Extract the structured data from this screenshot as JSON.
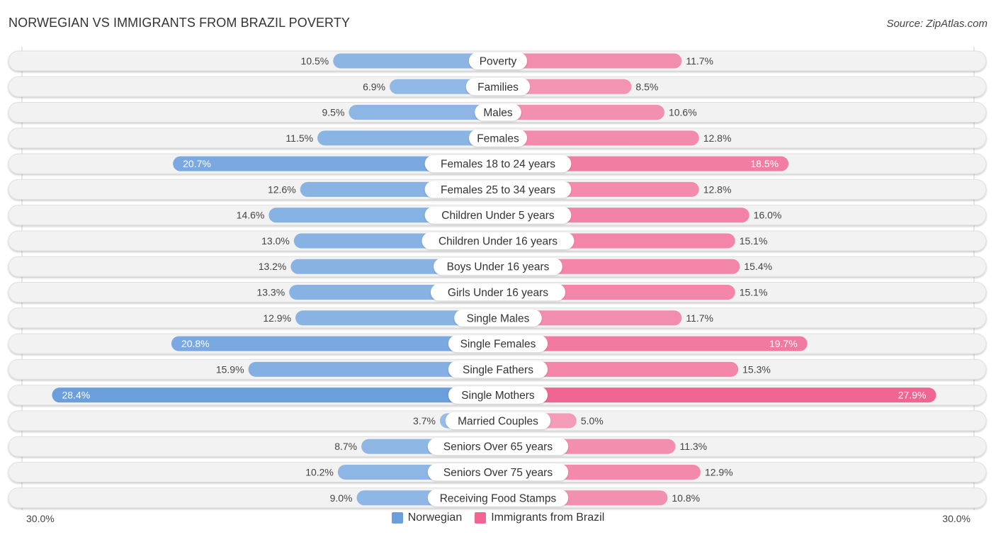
{
  "title": "NORWEGIAN VS IMMIGRANTS FROM BRAZIL POVERTY",
  "source": "Source: ZipAtlas.com",
  "colors": {
    "norwegian": "#6a9fdc",
    "norwegian_light": "#9bbfe8",
    "brazil": "#f06592",
    "brazil_light": "#f5a3bd",
    "track": "#f2f2f2"
  },
  "chart_data": {
    "type": "bar",
    "orientation": "horizontal-diverging",
    "title": "NORWEGIAN VS IMMIGRANTS FROM BRAZIL POVERTY",
    "xlabel": "",
    "ylabel": "",
    "xlim": [
      -30,
      30
    ],
    "axis_tick_labels": {
      "left": "30.0%",
      "right": "30.0%"
    },
    "legend": {
      "position": "bottom-center",
      "entries": [
        "Norwegian",
        "Immigrants from Brazil"
      ]
    },
    "categories": [
      "Poverty",
      "Families",
      "Males",
      "Females",
      "Females 18 to 24 years",
      "Females 25 to 34 years",
      "Children Under 5 years",
      "Children Under 16 years",
      "Boys Under 16 years",
      "Girls Under 16 years",
      "Single Males",
      "Single Females",
      "Single Fathers",
      "Single Mothers",
      "Married Couples",
      "Seniors Over 65 years",
      "Seniors Over 75 years",
      "Receiving Food Stamps"
    ],
    "series": [
      {
        "name": "Norwegian",
        "side": "left",
        "values": [
          10.5,
          6.9,
          9.5,
          11.5,
          20.7,
          12.6,
          14.6,
          13.0,
          13.2,
          13.3,
          12.9,
          20.8,
          15.9,
          28.4,
          3.7,
          8.7,
          10.2,
          9.0
        ],
        "labels": [
          "10.5%",
          "6.9%",
          "9.5%",
          "11.5%",
          "20.7%",
          "12.6%",
          "14.6%",
          "13.0%",
          "13.2%",
          "13.3%",
          "12.9%",
          "20.8%",
          "15.9%",
          "28.4%",
          "3.7%",
          "8.7%",
          "10.2%",
          "9.0%"
        ]
      },
      {
        "name": "Immigrants from Brazil",
        "side": "right",
        "values": [
          11.7,
          8.5,
          10.6,
          12.8,
          18.5,
          12.8,
          16.0,
          15.1,
          15.4,
          15.1,
          11.7,
          19.7,
          15.3,
          27.9,
          5.0,
          11.3,
          12.9,
          10.8
        ],
        "labels": [
          "11.7%",
          "8.5%",
          "10.6%",
          "12.8%",
          "18.5%",
          "12.8%",
          "16.0%",
          "15.1%",
          "15.4%",
          "15.1%",
          "11.7%",
          "19.7%",
          "15.3%",
          "27.9%",
          "5.0%",
          "11.3%",
          "12.9%",
          "10.8%"
        ]
      }
    ]
  }
}
